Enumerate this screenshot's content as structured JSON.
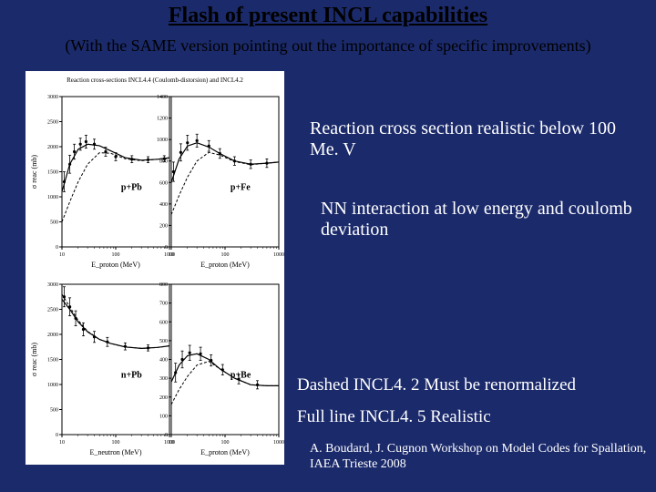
{
  "title": "Flash of present INCL capabilities",
  "subtitle": "(With the SAME version pointing out the importance of specific improvements)",
  "notes": {
    "reaction": "Reaction cross section realistic below 100 Me. V",
    "nn": "NN interaction at low energy and coulomb deviation",
    "dashed": "Dashed   INCL4. 2  Must be renormalized",
    "full": "Full line  INCL4. 5  Realistic",
    "citation": "A. Boudard, J. Cugnon Workshop on Model  Codes for Spallation, IAEA Trieste 2008"
  },
  "charts": {
    "overall_title": "Reaction cross-sections INCL4.4 (Coulomb-distorsion) and INCL4.2",
    "overall_title_fontsize": 7,
    "background_color": "#ffffff",
    "axis_color": "#000000",
    "text_color": "#000000",
    "solid_line_color": "#000000",
    "dashed_line_color": "#000000",
    "marker_color": "#000000",
    "panels": [
      {
        "label": "p+Pb",
        "xlabel": "E_proton (MeV)",
        "ylabel": "σ reac (mb)",
        "xlog": true,
        "x_ticks": [
          10,
          100,
          1000
        ],
        "y_ticks": [
          0,
          500,
          1000,
          1500,
          2000,
          2500,
          3000
        ],
        "ylim": [
          0,
          3000
        ],
        "solid": [
          [
            10,
            1100
          ],
          [
            14,
            1650
          ],
          [
            20,
            1950
          ],
          [
            30,
            2050
          ],
          [
            50,
            2020
          ],
          [
            80,
            1920
          ],
          [
            150,
            1780
          ],
          [
            300,
            1730
          ],
          [
            600,
            1750
          ],
          [
            1000,
            1780
          ]
        ],
        "dashed": [
          [
            10,
            500
          ],
          [
            14,
            900
          ],
          [
            20,
            1300
          ],
          [
            30,
            1650
          ],
          [
            50,
            1880
          ],
          [
            80,
            1870
          ],
          [
            150,
            1760
          ],
          [
            300,
            1720
          ],
          [
            600,
            1750
          ],
          [
            1000,
            1780
          ]
        ],
        "data_points": [
          [
            11,
            1300,
            200
          ],
          [
            14,
            1650,
            180
          ],
          [
            17,
            1900,
            150
          ],
          [
            22,
            2050,
            120
          ],
          [
            28,
            2100,
            130
          ],
          [
            40,
            2050,
            100
          ],
          [
            65,
            1900,
            90
          ],
          [
            100,
            1800,
            80
          ],
          [
            200,
            1750,
            70
          ],
          [
            400,
            1740,
            60
          ],
          [
            800,
            1760,
            60
          ]
        ]
      },
      {
        "label": "p+Fe",
        "xlabel": "E_proton (MeV)",
        "ylabel": "",
        "xlog": true,
        "x_ticks": [
          10,
          100,
          1000
        ],
        "y_ticks": [
          0,
          200,
          400,
          600,
          800,
          1000,
          1200,
          1400
        ],
        "ylim": [
          0,
          1400
        ],
        "solid": [
          [
            10,
            600
          ],
          [
            14,
            820
          ],
          [
            20,
            940
          ],
          [
            30,
            970
          ],
          [
            50,
            930
          ],
          [
            80,
            870
          ],
          [
            150,
            800
          ],
          [
            300,
            770
          ],
          [
            600,
            780
          ],
          [
            1000,
            790
          ]
        ],
        "dashed": [
          [
            10,
            300
          ],
          [
            14,
            480
          ],
          [
            20,
            650
          ],
          [
            30,
            800
          ],
          [
            50,
            880
          ],
          [
            80,
            855
          ],
          [
            150,
            795
          ],
          [
            300,
            765
          ],
          [
            600,
            780
          ],
          [
            1000,
            790
          ]
        ],
        "data_points": [
          [
            11,
            700,
            90
          ],
          [
            15,
            880,
            80
          ],
          [
            20,
            970,
            70
          ],
          [
            30,
            990,
            60
          ],
          [
            50,
            940,
            50
          ],
          [
            80,
            870,
            45
          ],
          [
            150,
            800,
            40
          ],
          [
            300,
            770,
            40
          ],
          [
            600,
            780,
            40
          ]
        ]
      },
      {
        "label": "n+Pb",
        "xlabel": "E_neutron (MeV)",
        "ylabel": "σ reac (mb)",
        "xlog": true,
        "x_ticks": [
          10,
          100,
          1000
        ],
        "y_ticks": [
          0,
          500,
          1000,
          1500,
          2000,
          2500,
          3000
        ],
        "ylim": [
          0,
          3000
        ],
        "solid": [
          [
            10,
            2700
          ],
          [
            14,
            2500
          ],
          [
            20,
            2250
          ],
          [
            30,
            2050
          ],
          [
            50,
            1900
          ],
          [
            80,
            1820
          ],
          [
            150,
            1750
          ],
          [
            300,
            1720
          ],
          [
            600,
            1740
          ],
          [
            1000,
            1770
          ]
        ],
        "dashed": [
          [
            10,
            2800
          ],
          [
            14,
            2550
          ],
          [
            20,
            2280
          ],
          [
            30,
            2060
          ],
          [
            50,
            1900
          ],
          [
            80,
            1820
          ],
          [
            150,
            1750
          ],
          [
            300,
            1720
          ],
          [
            600,
            1740
          ],
          [
            1000,
            1770
          ]
        ],
        "data_points": [
          [
            11,
            2750,
            200
          ],
          [
            14,
            2550,
            180
          ],
          [
            18,
            2320,
            150
          ],
          [
            25,
            2100,
            130
          ],
          [
            40,
            1950,
            110
          ],
          [
            70,
            1850,
            90
          ],
          [
            150,
            1760,
            70
          ],
          [
            400,
            1730,
            60
          ]
        ]
      },
      {
        "label": "p+Be",
        "xlabel": "E_proton (MeV)",
        "ylabel": "",
        "xlog": true,
        "x_ticks": [
          10,
          100,
          1000
        ],
        "y_ticks": [
          0,
          100,
          200,
          300,
          400,
          500,
          600,
          700,
          800
        ],
        "ylim": [
          0,
          800
        ],
        "solid": [
          [
            10,
            280
          ],
          [
            14,
            370
          ],
          [
            20,
            420
          ],
          [
            30,
            430
          ],
          [
            50,
            400
          ],
          [
            80,
            350
          ],
          [
            150,
            300
          ],
          [
            300,
            265
          ],
          [
            600,
            260
          ],
          [
            1000,
            260
          ]
        ],
        "dashed": [
          [
            10,
            160
          ],
          [
            14,
            240
          ],
          [
            20,
            310
          ],
          [
            30,
            370
          ],
          [
            50,
            390
          ],
          [
            80,
            350
          ],
          [
            150,
            300
          ],
          [
            300,
            265
          ],
          [
            600,
            260
          ],
          [
            1000,
            260
          ]
        ],
        "data_points": [
          [
            12,
            330,
            50
          ],
          [
            16,
            400,
            45
          ],
          [
            22,
            435,
            40
          ],
          [
            35,
            430,
            35
          ],
          [
            55,
            395,
            30
          ],
          [
            90,
            345,
            28
          ],
          [
            180,
            295,
            25
          ],
          [
            400,
            265,
            22
          ]
        ]
      }
    ]
  }
}
